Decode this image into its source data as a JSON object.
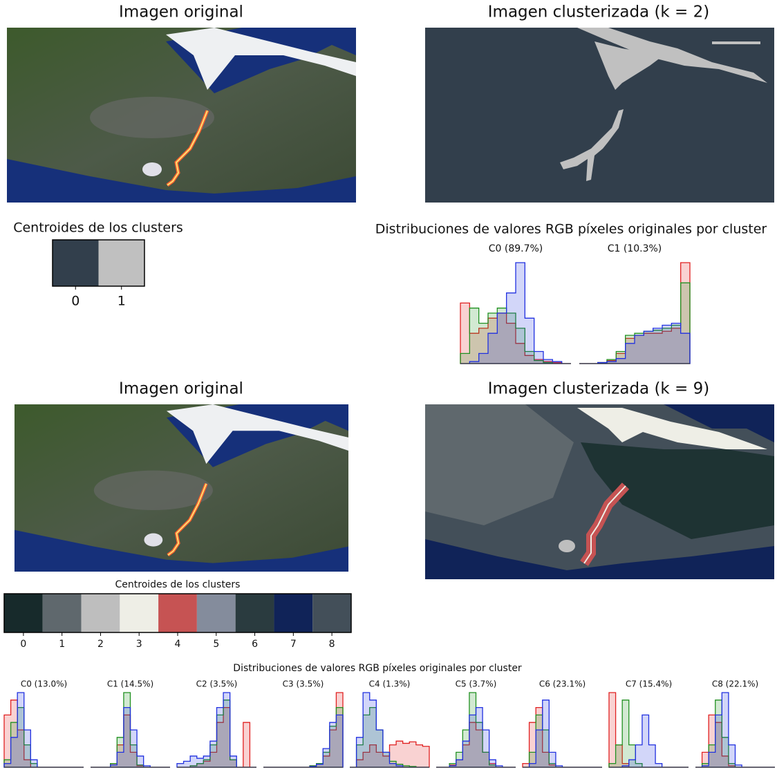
{
  "hist_colors": [
    "#e02020",
    "#209020",
    "#2030e0"
  ],
  "sections": [
    {
      "original_title": "Imagen original",
      "clustered_title": "Imagen clusterizada (k = 2)",
      "centroids_title": "Centroides de los clusters",
      "centroids": [
        {
          "label": "0",
          "color": "#323f4c"
        },
        {
          "label": "1",
          "color": "#c0c0c0"
        }
      ],
      "distributions_title": "Distribuciones de valores RGB píxeles originales por cluster",
      "clusters": [
        {
          "label": "C0 (89.7%)",
          "red": [
            0.6,
            0.3,
            0.35,
            0.45,
            0.5,
            0.4,
            0.2,
            0.08,
            0.04,
            0.02,
            0.01,
            0
          ],
          "green": [
            0.1,
            0.55,
            0.4,
            0.5,
            0.55,
            0.5,
            0.35,
            0.12,
            0.03,
            0.01,
            0,
            0
          ],
          "blue": [
            0,
            0.02,
            0.1,
            0.3,
            0.5,
            0.7,
            1.0,
            0.45,
            0.12,
            0.04,
            0.02,
            0
          ]
        },
        {
          "label": "C1 (10.3%)",
          "red": [
            0,
            0,
            0.01,
            0.03,
            0.1,
            0.25,
            0.28,
            0.3,
            0.3,
            0.32,
            0.35,
            1.0
          ],
          "green": [
            0,
            0,
            0.01,
            0.04,
            0.12,
            0.28,
            0.3,
            0.32,
            0.33,
            0.35,
            0.38,
            0.8
          ],
          "blue": [
            0,
            0,
            0.01,
            0.02,
            0.05,
            0.2,
            0.28,
            0.32,
            0.35,
            0.38,
            0.4,
            0.3
          ]
        }
      ]
    },
    {
      "original_title": "Imagen original",
      "clustered_title": "Imagen clusterizada (k = 9)",
      "centroids_title": "Centroides de los clusters",
      "centroids": [
        {
          "label": "0",
          "color": "#172a2b"
        },
        {
          "label": "1",
          "color": "#5f686d"
        },
        {
          "label": "2",
          "color": "#bebebe"
        },
        {
          "label": "3",
          "color": "#eeeee6"
        },
        {
          "label": "4",
          "color": "#c65353"
        },
        {
          "label": "5",
          "color": "#848c9c"
        },
        {
          "label": "6",
          "color": "#2a3b3f"
        },
        {
          "label": "7",
          "color": "#102358"
        },
        {
          "label": "8",
          "color": "#434f59"
        }
      ],
      "distributions_title": "Distribuciones de valores RGB píxeles originales por cluster",
      "clusters": [
        {
          "label": "C0 (13.0%)",
          "red": [
            0.7,
            0.9,
            0.5,
            0.1,
            0,
            0,
            0,
            0,
            0,
            0,
            0,
            0
          ],
          "green": [
            0.1,
            0.6,
            0.8,
            0.3,
            0.05,
            0,
            0,
            0,
            0,
            0,
            0,
            0
          ],
          "blue": [
            0.05,
            0.4,
            1.0,
            0.5,
            0.1,
            0,
            0,
            0,
            0,
            0,
            0,
            0
          ]
        },
        {
          "label": "C1 (14.5%)",
          "red": [
            0,
            0,
            0,
            0.05,
            0.3,
            0.7,
            0.2,
            0.02,
            0,
            0,
            0,
            0
          ],
          "green": [
            0,
            0,
            0,
            0.05,
            0.4,
            1.0,
            0.3,
            0.03,
            0,
            0,
            0,
            0
          ],
          "blue": [
            0,
            0,
            0,
            0.03,
            0.2,
            0.8,
            0.5,
            0.15,
            0.02,
            0,
            0,
            0
          ]
        },
        {
          "label": "C2 (3.5%)",
          "red": [
            0,
            0,
            0.02,
            0.05,
            0.08,
            0.2,
            0.6,
            0.8,
            0.1,
            0,
            0.6,
            0
          ],
          "green": [
            0,
            0,
            0.02,
            0.05,
            0.1,
            0.3,
            0.7,
            0.9,
            0.1,
            0,
            0,
            0
          ],
          "blue": [
            0.05,
            0.08,
            0.15,
            0.12,
            0.15,
            0.35,
            0.8,
            1.0,
            0.15,
            0,
            0,
            0
          ]
        },
        {
          "label": "C3 (3.5%)",
          "red": [
            0,
            0,
            0,
            0,
            0,
            0,
            0,
            0.02,
            0.05,
            0.15,
            0.5,
            1.0
          ],
          "green": [
            0,
            0,
            0,
            0,
            0,
            0,
            0,
            0.02,
            0.05,
            0.2,
            0.55,
            0.8
          ],
          "blue": [
            0,
            0,
            0,
            0,
            0,
            0,
            0,
            0.01,
            0.04,
            0.25,
            0.6,
            0.7
          ]
        },
        {
          "label": "C4 (1.3%)",
          "red": [
            0,
            0.1,
            0.2,
            0.3,
            0.2,
            0.15,
            0.3,
            0.35,
            0.32,
            0.34,
            0.3,
            0.28
          ],
          "green": [
            0,
            0.3,
            0.7,
            0.8,
            0.5,
            0.2,
            0.08,
            0.04,
            0.02,
            0.01,
            0,
            0
          ],
          "blue": [
            0,
            0.4,
            1.0,
            0.9,
            0.5,
            0.2,
            0.05,
            0.02,
            0,
            0,
            0,
            0
          ]
        },
        {
          "label": "C5 (3.7%)",
          "red": [
            0,
            0,
            0.03,
            0.1,
            0.3,
            0.6,
            0.5,
            0.2,
            0.05,
            0,
            0,
            0
          ],
          "green": [
            0,
            0,
            0.05,
            0.2,
            0.5,
            1.0,
            0.6,
            0.2,
            0.03,
            0,
            0,
            0
          ],
          "blue": [
            0,
            0,
            0.02,
            0.1,
            0.35,
            0.7,
            0.8,
            0.5,
            0.1,
            0.02,
            0,
            0
          ]
        },
        {
          "label": "C6 (23.1%)",
          "red": [
            0.05,
            0.6,
            0.8,
            0.2,
            0.03,
            0,
            0,
            0,
            0,
            0,
            0,
            0
          ],
          "green": [
            0,
            0.2,
            0.7,
            0.5,
            0.05,
            0,
            0,
            0,
            0,
            0,
            0,
            0
          ],
          "blue": [
            0,
            0.05,
            0.5,
            0.9,
            0.2,
            0.02,
            0,
            0,
            0,
            0,
            0,
            0
          ]
        },
        {
          "label": "C7 (15.4%)",
          "red": [
            1.0,
            0.3,
            0.05,
            0,
            0,
            0,
            0,
            0,
            0,
            0,
            0,
            0
          ],
          "green": [
            0.05,
            0.3,
            0.9,
            0.3,
            0.05,
            0,
            0,
            0,
            0,
            0,
            0,
            0
          ],
          "blue": [
            0,
            0,
            0.02,
            0.1,
            0.3,
            0.7,
            0.3,
            0.05,
            0,
            0,
            0,
            0
          ]
        },
        {
          "label": "C8 (22.1%)",
          "red": [
            0,
            0.2,
            0.7,
            0.6,
            0.15,
            0.02,
            0,
            0,
            0,
            0,
            0,
            0
          ],
          "green": [
            0,
            0.05,
            0.3,
            0.9,
            0.4,
            0.05,
            0,
            0,
            0,
            0,
            0,
            0
          ],
          "blue": [
            0,
            0.02,
            0.2,
            0.7,
            1.0,
            0.3,
            0.03,
            0,
            0,
            0,
            0,
            0
          ]
        }
      ]
    }
  ]
}
